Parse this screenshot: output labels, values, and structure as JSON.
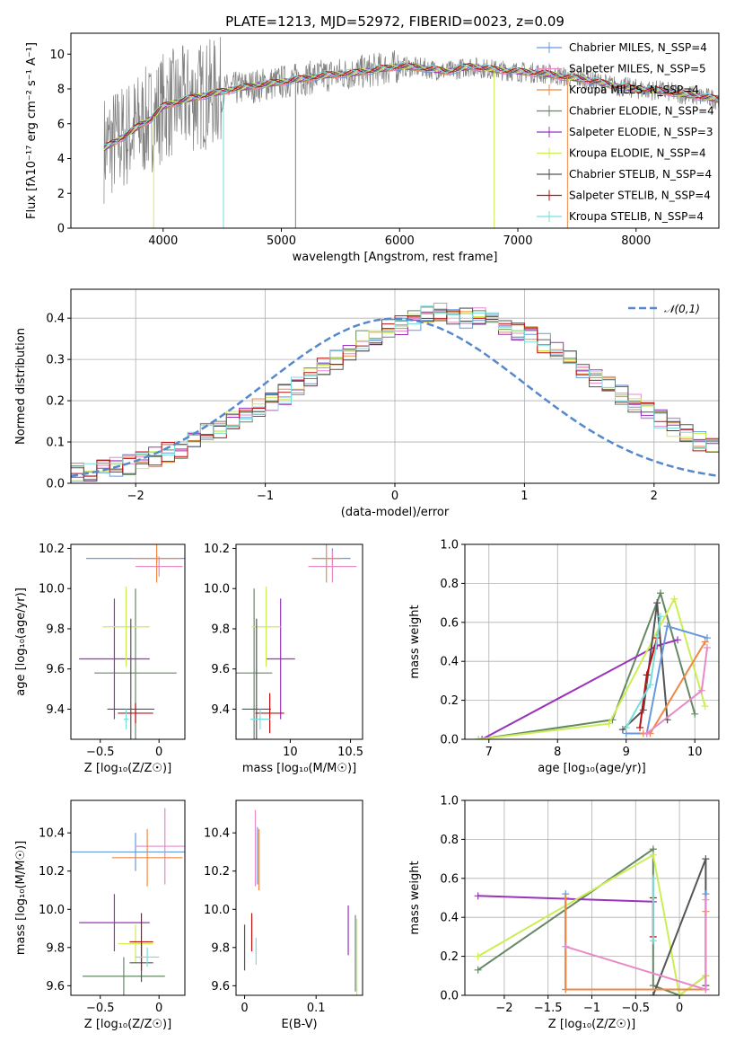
{
  "chart_data": [
    {
      "type": "line",
      "title": "PLATE=1213, MJD=52972, FIBERID=0023, z=0.09",
      "xlabel": "wavelength [Angstrom, rest frame]",
      "ylabel": "Flux [fλ10⁻¹⁷ erg cm⁻² s⁻¹ A⁻¹]",
      "xlim": [
        3220,
        8700
      ],
      "ylim": [
        0,
        11.2
      ],
      "xticks": [
        4000,
        5000,
        6000,
        7000,
        8000
      ],
      "yticks": [
        0,
        2,
        4,
        6,
        8,
        10
      ],
      "legend_position": "right",
      "legend": [
        {
          "name": "Chabrier MILES, N_SSP=4",
          "color": "#6699dd"
        },
        {
          "name": "Salpeter MILES, N_SSP=5",
          "color": "#e889c8"
        },
        {
          "name": "Kroupa MILES, N_SSP=4",
          "color": "#ee8844"
        },
        {
          "name": "Chabrier ELODIE, N_SSP=4",
          "color": "#668866"
        },
        {
          "name": "Salpeter ELODIE, N_SSP=3",
          "color": "#9933bb"
        },
        {
          "name": "Kroupa ELODIE, N_SSP=4",
          "color": "#ccee55"
        },
        {
          "name": "Chabrier STELIB, N_SSP=4",
          "color": "#555555"
        },
        {
          "name": "Salpeter STELIB, N_SSP=4",
          "color": "#bb1111"
        },
        {
          "name": "Kroupa STELIB, N_SSP=4",
          "color": "#77dddd"
        }
      ],
      "spectrum_range": [
        3500,
        8700
      ],
      "model_points_x": [
        3500,
        3600,
        3700,
        3800,
        3900,
        4000,
        4200,
        4400,
        4600,
        4800,
        5000,
        5200,
        5400,
        5600,
        5800,
        6000,
        6200,
        6400,
        6600,
        6800,
        7000,
        7200,
        7400,
        7600,
        7800,
        8000,
        8200,
        8400,
        8600,
        8700
      ],
      "model_points_y": [
        4.6,
        5.0,
        5.4,
        5.9,
        6.3,
        7.0,
        7.4,
        7.7,
        8.0,
        8.2,
        8.4,
        8.6,
        8.8,
        8.9,
        9.1,
        9.3,
        9.2,
        9.0,
        9.3,
        9.1,
        9.0,
        8.9,
        8.7,
        8.5,
        8.2,
        8.0,
        7.9,
        7.7,
        7.5,
        7.4
      ]
    },
    {
      "type": "line",
      "xlabel": "(data-model)/error",
      "ylabel": "Normed distribution",
      "xlim": [
        -2.5,
        2.5
      ],
      "ylim": [
        0,
        0.47
      ],
      "xticks": [
        -2,
        -1,
        0,
        1,
        2
      ],
      "yticks": [
        0.0,
        0.1,
        0.2,
        0.3,
        0.4
      ],
      "legend_position": "upper right",
      "legend": [
        {
          "name": "𝒩(0,1)",
          "color": "#5588cc"
        }
      ],
      "bin_edges_start": -2.5,
      "bin_width": 0.1,
      "histogram_approx": [
        0.03,
        0.03,
        0.035,
        0.04,
        0.045,
        0.055,
        0.065,
        0.075,
        0.085,
        0.1,
        0.12,
        0.13,
        0.15,
        0.165,
        0.18,
        0.2,
        0.215,
        0.235,
        0.255,
        0.28,
        0.3,
        0.32,
        0.345,
        0.36,
        0.375,
        0.385,
        0.395,
        0.41,
        0.415,
        0.41,
        0.4,
        0.4,
        0.39,
        0.38,
        0.37,
        0.355,
        0.34,
        0.32,
        0.3,
        0.28,
        0.255,
        0.235,
        0.215,
        0.195,
        0.175,
        0.155,
        0.135,
        0.12,
        0.1,
        0.09,
        0.075,
        0.065,
        0.055,
        0.045,
        0.04,
        0.035,
        0.03
      ]
    },
    {
      "type": "scatter",
      "xlabel": "Z [log₁₀(Z/Z☉)]",
      "ylabel": "age  [log₁₀(age/yr)]",
      "xlim": [
        -0.75,
        0.22
      ],
      "ylim": [
        9.25,
        10.22
      ],
      "xticks": [
        -0.5,
        0.0
      ],
      "yticks": [
        9.4,
        9.6,
        9.8,
        10.0,
        10.2
      ],
      "points": [
        {
          "x": -0.02,
          "y": 10.15,
          "xerr": 0.6,
          "yerr": 0.02,
          "color": "#6699dd"
        },
        {
          "x": 0.0,
          "y": 10.11,
          "xerr": 0.2,
          "yerr": 0.05,
          "color": "#e889c8"
        },
        {
          "x": -0.02,
          "y": 10.15,
          "xerr": 0.2,
          "yerr": 0.12,
          "color": "#ee8844"
        },
        {
          "x": -0.2,
          "y": 9.58,
          "xerr": 0.35,
          "yerr": 0.42,
          "color": "#668866"
        },
        {
          "x": -0.38,
          "y": 9.65,
          "xerr": 0.3,
          "yerr": 0.3,
          "color": "#9933bb"
        },
        {
          "x": -0.28,
          "y": 9.81,
          "xerr": 0.2,
          "yerr": 0.2,
          "color": "#ccee55"
        },
        {
          "x": -0.24,
          "y": 9.4,
          "xerr": 0.2,
          "yerr": 0.45,
          "color": "#555555"
        },
        {
          "x": -0.2,
          "y": 9.38,
          "xerr": 0.15,
          "yerr": 0.05,
          "color": "#bb1111"
        },
        {
          "x": -0.28,
          "y": 9.35,
          "xerr": 0.02,
          "yerr": 0.05,
          "color": "#77dddd"
        }
      ]
    },
    {
      "type": "scatter",
      "xlabel": "mass [log₁₀(M/M☉)]",
      "ylabel": "",
      "xlim": [
        9.55,
        10.6
      ],
      "ylim": [
        9.25,
        10.22
      ],
      "xticks": [
        10.0,
        10.5
      ],
      "yticks": [
        9.4,
        9.6,
        9.8,
        10.0,
        10.2
      ],
      "points": [
        {
          "x": 10.35,
          "y": 10.15,
          "xerr": 0.15,
          "yerr": 0.05,
          "color": "#6699dd"
        },
        {
          "x": 10.35,
          "y": 10.11,
          "xerr": 0.2,
          "yerr": 0.08,
          "color": "#e889c8"
        },
        {
          "x": 10.3,
          "y": 10.15,
          "xerr": 0.12,
          "yerr": 0.12,
          "color": "#ee8844"
        },
        {
          "x": 9.7,
          "y": 9.58,
          "xerr": 0.15,
          "yerr": 0.42,
          "color": "#668866"
        },
        {
          "x": 9.92,
          "y": 9.65,
          "xerr": 0.12,
          "yerr": 0.3,
          "color": "#9933bb"
        },
        {
          "x": 9.8,
          "y": 9.81,
          "xerr": 0.12,
          "yerr": 0.2,
          "color": "#ccee55"
        },
        {
          "x": 9.72,
          "y": 9.4,
          "xerr": 0.12,
          "yerr": 0.45,
          "color": "#555555"
        },
        {
          "x": 9.83,
          "y": 9.38,
          "xerr": 0.12,
          "yerr": 0.1,
          "color": "#bb1111"
        },
        {
          "x": 9.75,
          "y": 9.35,
          "xerr": 0.08,
          "yerr": 0.05,
          "color": "#77dddd"
        }
      ]
    },
    {
      "type": "line",
      "xlabel": "age  [log₁₀(age/yr)]",
      "ylabel": "mass weight",
      "xlim": [
        6.65,
        10.35
      ],
      "ylim": [
        0.0,
        1.0
      ],
      "xticks": [
        7,
        8,
        9,
        10
      ],
      "yticks": [
        0.0,
        0.2,
        0.4,
        0.6,
        0.8,
        1.0
      ],
      "series": [
        {
          "color": "#668866",
          "x": [
            6.85,
            8.8,
            9.5,
            10.0
          ],
          "y": [
            0.0,
            0.1,
            0.75,
            0.13
          ]
        },
        {
          "color": "#9933bb",
          "x": [
            6.9,
            9.45,
            9.75
          ],
          "y": [
            0.0,
            0.48,
            0.51
          ]
        },
        {
          "color": "#ccee55",
          "x": [
            6.85,
            8.75,
            9.7,
            10.15
          ],
          "y": [
            0.0,
            0.08,
            0.72,
            0.17
          ]
        },
        {
          "color": "#555555",
          "x": [
            8.95,
            9.25,
            9.45,
            9.6
          ],
          "y": [
            0.05,
            0.15,
            0.7,
            0.1
          ]
        },
        {
          "color": "#bb1111",
          "x": [
            9.2,
            9.3,
            9.45
          ],
          "y": [
            0.06,
            0.33,
            0.52
          ]
        },
        {
          "color": "#6699dd",
          "x": [
            9.0,
            9.3,
            9.6,
            10.18
          ],
          "y": [
            0.03,
            0.03,
            0.58,
            0.52
          ]
        },
        {
          "color": "#ee8844",
          "x": [
            9.25,
            9.35,
            10.15
          ],
          "y": [
            0.03,
            0.03,
            0.5
          ]
        },
        {
          "color": "#e889c8",
          "x": [
            9.3,
            10.1,
            10.18
          ],
          "y": [
            0.03,
            0.25,
            0.47
          ]
        },
        {
          "color": "#77dddd",
          "x": [
            9.0,
            9.35,
            9.5
          ],
          "y": [
            0.06,
            0.28,
            0.63
          ]
        }
      ]
    },
    {
      "type": "scatter",
      "xlabel": "Z [log₁₀(Z/Z☉)]",
      "ylabel": "mass [log₁₀(M/M☉)]",
      "xlim": [
        -0.75,
        0.22
      ],
      "ylim": [
        9.55,
        10.57
      ],
      "xticks": [
        -0.5,
        0.0
      ],
      "yticks": [
        9.6,
        9.8,
        10.0,
        10.2,
        10.4
      ],
      "points": [
        {
          "x": -0.2,
          "y": 10.3,
          "xerr": 0.6,
          "yerr": 0.1,
          "color": "#6699dd"
        },
        {
          "x": 0.05,
          "y": 10.33,
          "xerr": 0.25,
          "yerr": 0.2,
          "color": "#e889c8"
        },
        {
          "x": -0.1,
          "y": 10.27,
          "xerr": 0.3,
          "yerr": 0.15,
          "color": "#ee8844"
        },
        {
          "x": -0.3,
          "y": 9.65,
          "xerr": 0.35,
          "yerr": 0.1,
          "color": "#668866"
        },
        {
          "x": -0.38,
          "y": 9.93,
          "xerr": 0.3,
          "yerr": 0.15,
          "color": "#9933bb"
        },
        {
          "x": -0.2,
          "y": 9.82,
          "xerr": 0.15,
          "yerr": 0.1,
          "color": "#ccee55"
        },
        {
          "x": -0.15,
          "y": 9.72,
          "xerr": 0.1,
          "yerr": 0.1,
          "color": "#555555"
        },
        {
          "x": -0.15,
          "y": 9.83,
          "xerr": 0.1,
          "yerr": 0.15,
          "color": "#bb1111"
        },
        {
          "x": -0.1,
          "y": 9.75,
          "xerr": 0.1,
          "yerr": 0.05,
          "color": "#77dddd"
        }
      ]
    },
    {
      "type": "scatter",
      "xlabel": "E(B-V)",
      "ylabel": "",
      "xlim": [
        -0.012,
        0.165
      ],
      "ylim": [
        9.55,
        10.57
      ],
      "xticks": [
        0.0,
        0.1
      ],
      "yticks": [
        9.6,
        9.8,
        10.0,
        10.2,
        10.4
      ],
      "points": [
        {
          "x": 0.0,
          "y": 9.8,
          "xerr": 0,
          "yerr": 0.12,
          "color": "#555555"
        },
        {
          "x": 0.01,
          "y": 9.88,
          "xerr": 0,
          "yerr": 0.1,
          "color": "#bb1111"
        },
        {
          "x": 0.015,
          "y": 10.32,
          "xerr": 0,
          "yerr": 0.2,
          "color": "#e889c8"
        },
        {
          "x": 0.018,
          "y": 10.28,
          "xerr": 0,
          "yerr": 0.15,
          "color": "#6699dd"
        },
        {
          "x": 0.02,
          "y": 10.26,
          "xerr": 0,
          "yerr": 0.16,
          "color": "#ee8844"
        },
        {
          "x": 0.016,
          "y": 9.78,
          "xerr": 0,
          "yerr": 0.07,
          "color": "#77dddd"
        },
        {
          "x": 0.145,
          "y": 9.89,
          "xerr": 0,
          "yerr": 0.13,
          "color": "#9933bb"
        },
        {
          "x": 0.155,
          "y": 9.77,
          "xerr": 0,
          "yerr": 0.2,
          "color": "#668866"
        },
        {
          "x": 0.157,
          "y": 9.75,
          "xerr": 0,
          "yerr": 0.2,
          "color": "#ccee55"
        }
      ]
    },
    {
      "type": "line",
      "xlabel": "Z [log₁₀(Z/Z☉)]",
      "ylabel": "mass weight",
      "xlim": [
        -2.45,
        0.45
      ],
      "ylim": [
        0.0,
        1.0
      ],
      "xticks": [
        -2.0,
        -1.5,
        -1.0,
        -0.5,
        0.0
      ],
      "yticks": [
        0.0,
        0.2,
        0.4,
        0.6,
        0.8,
        1.0
      ],
      "series": [
        {
          "color": "#668866",
          "x": [
            -2.3,
            -0.3,
            -0.3,
            0.0,
            0.3
          ],
          "y": [
            0.13,
            0.75,
            0.05,
            0.0,
            0.1
          ]
        },
        {
          "color": "#9933bb",
          "x": [
            -2.3,
            -0.3
          ],
          "y": [
            0.51,
            0.48
          ]
        },
        {
          "color": "#ccee55",
          "x": [
            -2.3,
            -0.3,
            0.0,
            0.3
          ],
          "y": [
            0.2,
            0.72,
            0.0,
            0.1
          ]
        },
        {
          "color": "#555555",
          "x": [
            -0.3,
            0.3,
            0.3
          ],
          "y": [
            0.0,
            0.7,
            0.05
          ]
        },
        {
          "color": "#bb1111",
          "x": [
            -0.3,
            -0.3
          ],
          "y": [
            0.3,
            0.5
          ]
        },
        {
          "color": "#6699dd",
          "x": [
            -1.3,
            -1.3,
            0.3,
            0.3
          ],
          "y": [
            0.52,
            0.03,
            0.03,
            0.52
          ]
        },
        {
          "color": "#ee8844",
          "x": [
            -1.3,
            -1.3,
            0.3,
            0.3
          ],
          "y": [
            0.5,
            0.03,
            0.03,
            0.43
          ]
        },
        {
          "color": "#e889c8",
          "x": [
            -1.3,
            0.3,
            0.3
          ],
          "y": [
            0.25,
            0.03,
            0.49
          ]
        },
        {
          "color": "#77dddd",
          "x": [
            -0.3,
            -0.3
          ],
          "y": [
            0.28,
            0.6
          ]
        }
      ]
    }
  ]
}
